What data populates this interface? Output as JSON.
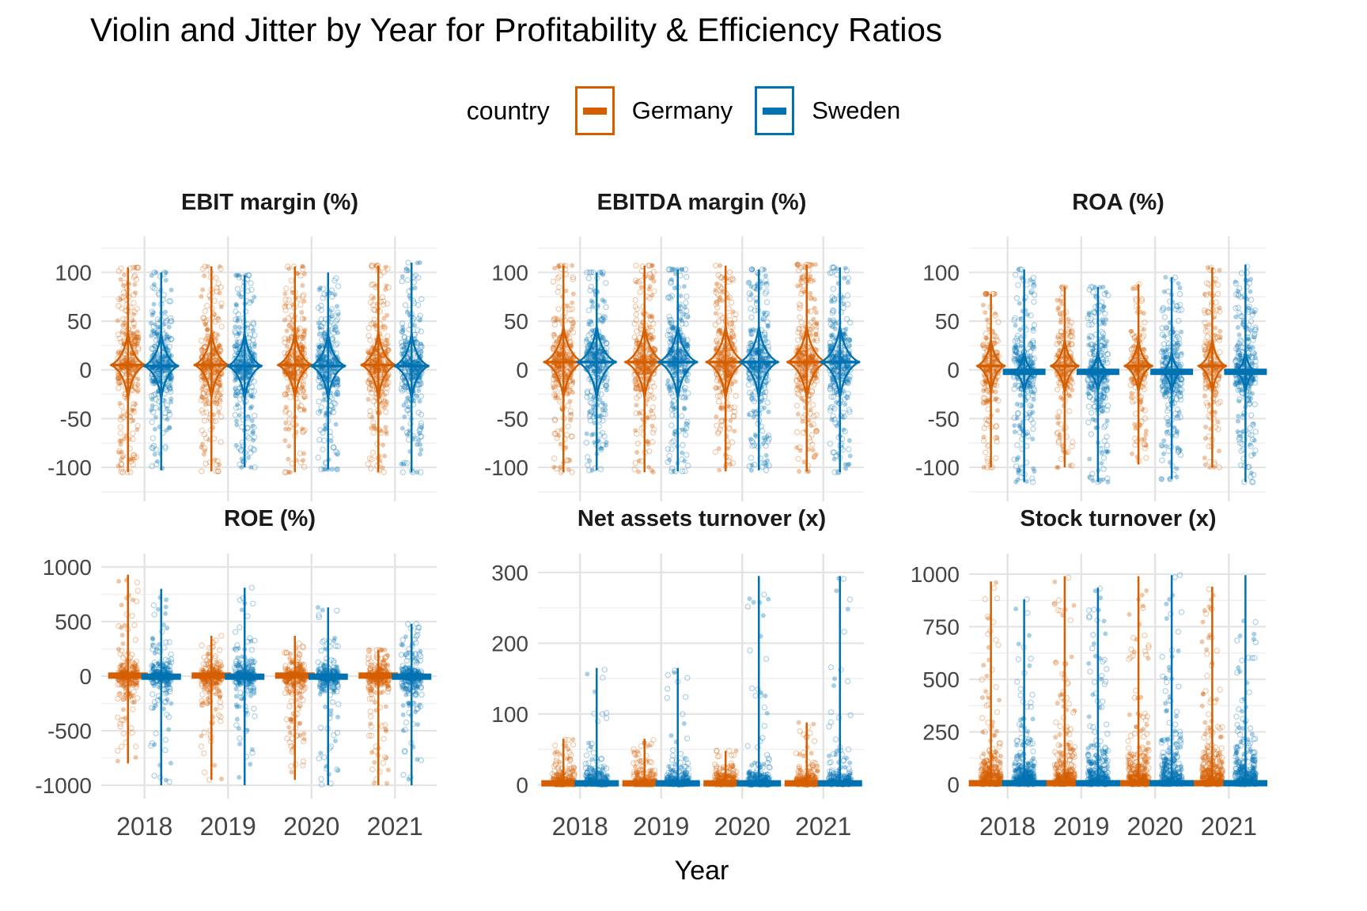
{
  "page_title": "Violin and Jitter by Year for Profitability & Efficiency Ratios",
  "legend": {
    "title": "country",
    "items": [
      {
        "label": "Germany",
        "color": "#D55E00"
      },
      {
        "label": "Sweden",
        "color": "#0072B2"
      }
    ]
  },
  "chart_data": {
    "type": "violin-jitter",
    "x_categories": [
      "2018",
      "2019",
      "2020",
      "2021"
    ],
    "xlabel": "Year",
    "colors": {
      "Germany": "#D55E00",
      "Sweden": "#0072B2"
    },
    "grid": {
      "major": "#E4E4E4",
      "minor": "#F0F0F0",
      "tick_text": "#454545"
    },
    "legend_position": "top",
    "facets": [
      {
        "title": "EBIT margin (%)",
        "ylim": [
          -130,
          132
        ],
        "yticks": [
          100,
          50,
          0,
          -50,
          -100
        ],
        "series": [
          {
            "name": "Germany",
            "median": 5,
            "glyph": "diamond",
            "ranges": [
              [
                -105,
                105
              ],
              [
                -104,
                106
              ],
              [
                -105,
                106
              ],
              [
                -105,
                107
              ]
            ]
          },
          {
            "name": "Sweden",
            "median": 4,
            "glyph": "diamond",
            "ranges": [
              [
                -103,
                100
              ],
              [
                -100,
                97
              ],
              [
                -102,
                100
              ],
              [
                -105,
                110
              ]
            ]
          }
        ]
      },
      {
        "title": "EBITDA margin (%)",
        "ylim": [
          -130,
          132
        ],
        "yticks": [
          100,
          50,
          0,
          -50,
          -100
        ],
        "series": [
          {
            "name": "Germany",
            "median": 8,
            "glyph": "diamond",
            "ranges": [
              [
                -105,
                107
              ],
              [
                -105,
                107
              ],
              [
                -104,
                107
              ],
              [
                -104,
                108
              ]
            ]
          },
          {
            "name": "Sweden",
            "median": 8,
            "glyph": "diamond",
            "ranges": [
              [
                -103,
                100
              ],
              [
                -104,
                103
              ],
              [
                -103,
                103
              ],
              [
                -105,
                105
              ]
            ]
          }
        ]
      },
      {
        "title": "ROA (%)",
        "ylim": [
          -130,
          132
        ],
        "yticks": [
          100,
          50,
          0,
          -50,
          -100
        ],
        "series": [
          {
            "name": "Germany",
            "median": 4,
            "glyph": "diamond",
            "ranges": [
              [
                -100,
                78
              ],
              [
                -100,
                85
              ],
              [
                -97,
                88
              ],
              [
                -100,
                105
              ]
            ]
          },
          {
            "name": "Sweden",
            "median": -2,
            "glyph": "bardiamond",
            "ranges": [
              [
                -115,
                103
              ],
              [
                -115,
                85
              ],
              [
                -112,
                95
              ],
              [
                -115,
                108
              ]
            ]
          }
        ]
      },
      {
        "title": "ROE (%)",
        "ylim": [
          -1080,
          1080
        ],
        "yticks": [
          1000,
          500,
          0,
          -500,
          -1000
        ],
        "series": [
          {
            "name": "Germany",
            "median": 5,
            "glyph": "bar",
            "ranges": [
              [
                -800,
                930
              ],
              [
                -950,
                370
              ],
              [
                -950,
                370
              ],
              [
                -1000,
                240
              ]
            ]
          },
          {
            "name": "Sweden",
            "median": -5,
            "glyph": "bar",
            "ranges": [
              [
                -1000,
                800
              ],
              [
                -1000,
                810
              ],
              [
                -1000,
                630
              ],
              [
                -1000,
                480
              ]
            ]
          }
        ]
      },
      {
        "title": "Net assets turnover (x)",
        "ylim": [
          -13,
          320
        ],
        "yticks": [
          300,
          200,
          100,
          0
        ],
        "series": [
          {
            "name": "Germany",
            "median": 2,
            "glyph": "bar",
            "ranges": [
              [
                0,
                65
              ],
              [
                0,
                65
              ],
              [
                0,
                48
              ],
              [
                0,
                88
              ]
            ]
          },
          {
            "name": "Sweden",
            "median": 2,
            "glyph": "bar",
            "ranges": [
              [
                0,
                165
              ],
              [
                0,
                165
              ],
              [
                0,
                295
              ],
              [
                0,
                295
              ]
            ]
          }
        ]
      },
      {
        "title": "Stock turnover (x)",
        "ylim": [
          -45,
          1075
        ],
        "yticks": [
          1000,
          750,
          500,
          250,
          0
        ],
        "series": [
          {
            "name": "Germany",
            "median": 6,
            "glyph": "bar",
            "ranges": [
              [
                0,
                965
              ],
              [
                0,
                990
              ],
              [
                0,
                990
              ],
              [
                0,
                940
              ]
            ]
          },
          {
            "name": "Sweden",
            "median": 6,
            "glyph": "bar",
            "ranges": [
              [
                0,
                880
              ],
              [
                0,
                935
              ],
              [
                0,
                995
              ],
              [
                0,
                995
              ]
            ]
          }
        ]
      }
    ]
  }
}
